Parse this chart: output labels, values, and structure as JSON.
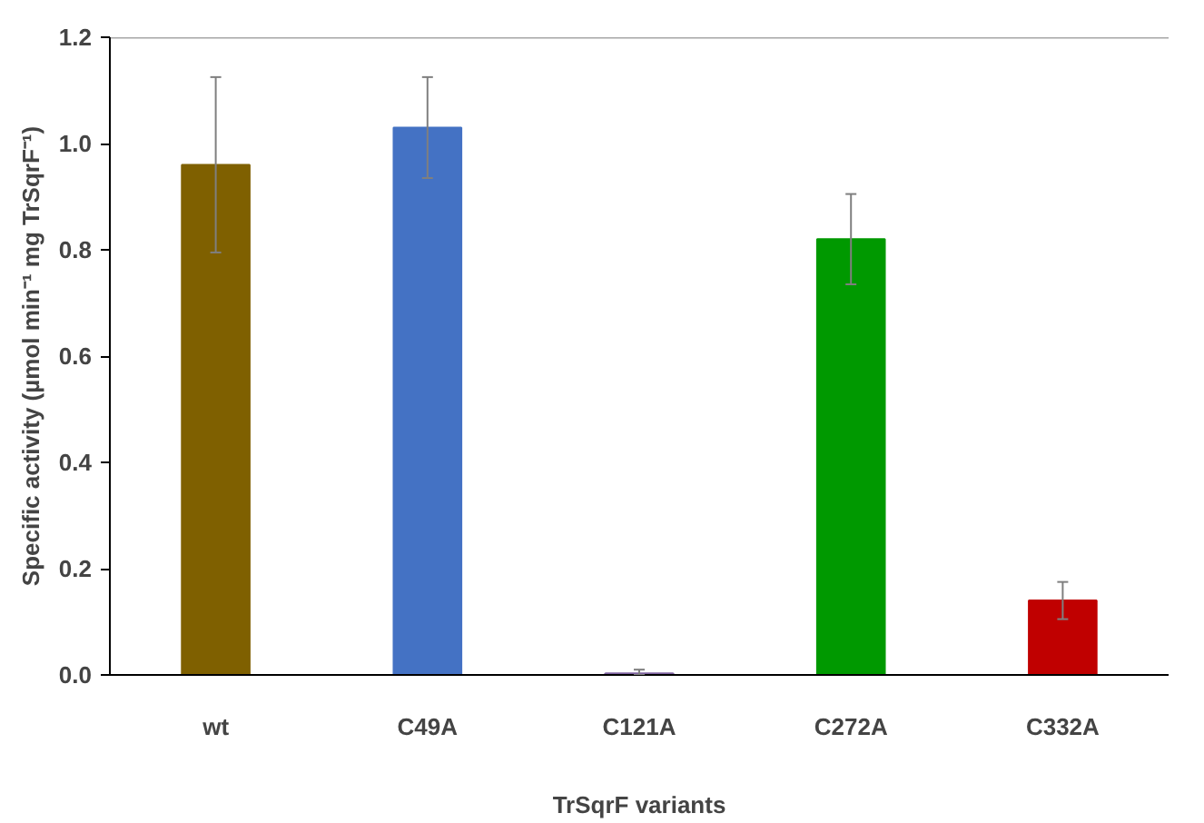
{
  "chart_data": {
    "type": "bar",
    "categories": [
      "wt",
      "C49A",
      "C121A",
      "C272A",
      "C332A"
    ],
    "values": [
      0.96,
      1.03,
      0.003,
      0.82,
      0.14
    ],
    "errors": [
      0.165,
      0.095,
      [
        0.003,
        0.007
      ],
      0.085,
      0.035
    ],
    "colors": [
      "#7f6000",
      "#4472c4",
      "#8064a2",
      "#009900",
      "#c00000"
    ],
    "xlabel": "TrSqrF variants",
    "ylabel": "Specific activity (µmol min⁻¹ mg TrSqrF⁻¹)",
    "ylim": [
      0,
      1.2
    ],
    "yticks": [
      {
        "value": 0,
        "label": "0.0"
      },
      {
        "value": 0.2,
        "label": "0.2"
      },
      {
        "value": 0.4,
        "label": "0.4"
      },
      {
        "value": 0.6,
        "label": "0.6"
      },
      {
        "value": 0.8,
        "label": "0.8"
      },
      {
        "value": 1.0,
        "label": "1.0"
      },
      {
        "value": 1.2,
        "label": "1.2"
      }
    ],
    "grid": false
  }
}
